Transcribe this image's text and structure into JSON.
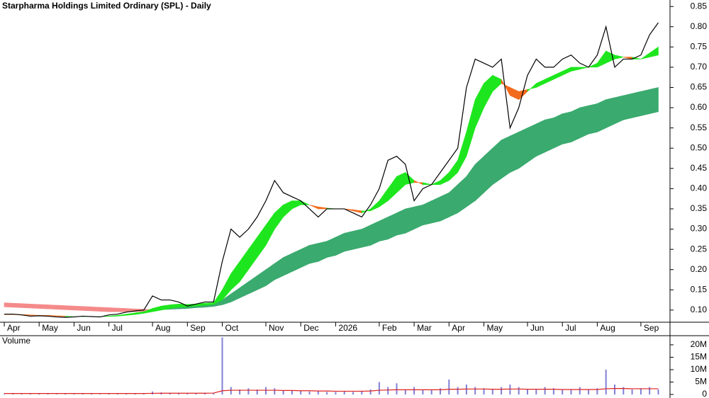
{
  "chart_data": [
    {
      "type": "line",
      "title": "Starpharma Holdings Limited Ordinary (SPL) - Daily",
      "categories": [
        "Apr",
        null,
        null,
        null,
        "May",
        null,
        null,
        null,
        "Jun",
        null,
        null,
        null,
        "Jul",
        null,
        null,
        null,
        null,
        "Aug",
        null,
        null,
        null,
        "Sep",
        null,
        null,
        null,
        "Oct",
        null,
        null,
        null,
        null,
        "Nov",
        null,
        null,
        null,
        "Dec",
        null,
        null,
        null,
        "2026",
        null,
        null,
        null,
        null,
        "Feb",
        null,
        null,
        null,
        "Mar",
        null,
        null,
        null,
        "Apr",
        null,
        null,
        null,
        "May",
        null,
        null,
        null,
        null,
        "Jun",
        null,
        null,
        null,
        "Jul",
        null,
        null,
        null,
        "Aug",
        null,
        null,
        null,
        null,
        "Sep",
        null,
        null
      ],
      "series": [
        {
          "color": "#000000",
          "values": [
            0.09,
            0.09,
            0.088,
            0.085,
            0.086,
            0.085,
            0.083,
            0.082,
            0.083,
            0.085,
            0.084,
            0.083,
            0.088,
            0.09,
            0.095,
            0.098,
            0.1,
            0.135,
            0.125,
            0.125,
            0.12,
            0.11,
            0.115,
            0.12,
            0.12,
            0.22,
            0.3,
            0.28,
            0.3,
            0.33,
            0.37,
            0.42,
            0.39,
            0.38,
            0.37,
            0.35,
            0.33,
            0.35,
            0.35,
            0.35,
            0.34,
            0.33,
            0.36,
            0.4,
            0.47,
            0.48,
            0.46,
            0.37,
            0.4,
            0.41,
            0.44,
            0.47,
            0.5,
            0.65,
            0.72,
            0.71,
            0.7,
            0.72,
            0.55,
            0.6,
            0.68,
            0.72,
            0.7,
            0.7,
            0.72,
            0.73,
            0.71,
            0.7,
            0.73,
            0.8,
            0.7,
            0.72,
            0.72,
            0.73,
            0.78,
            0.81
          ]
        }
      ],
      "bands": [
        {
          "rising_color": "#1ee61e",
          "falling_color": "#f26a1b",
          "fast": [
            0.089,
            0.089,
            0.088,
            0.087,
            0.086,
            0.086,
            0.085,
            0.084,
            0.084,
            0.084,
            0.084,
            0.084,
            0.085,
            0.087,
            0.09,
            0.093,
            0.096,
            0.104,
            0.11,
            0.113,
            0.115,
            0.114,
            0.115,
            0.117,
            0.118,
            0.15,
            0.19,
            0.22,
            0.25,
            0.28,
            0.31,
            0.34,
            0.36,
            0.37,
            0.37,
            0.36,
            0.35,
            0.35,
            0.35,
            0.35,
            0.345,
            0.34,
            0.35,
            0.37,
            0.4,
            0.43,
            0.44,
            0.42,
            0.41,
            0.41,
            0.42,
            0.44,
            0.47,
            0.54,
            0.62,
            0.66,
            0.68,
            0.67,
            0.63,
            0.62,
            0.64,
            0.66,
            0.67,
            0.68,
            0.69,
            0.7,
            0.7,
            0.7,
            0.71,
            0.74,
            0.73,
            0.725,
            0.72,
            0.72,
            0.735,
            0.75
          ],
          "slow": [
            0.09,
            0.09,
            0.089,
            0.088,
            0.087,
            0.087,
            0.086,
            0.085,
            0.084,
            0.084,
            0.084,
            0.084,
            0.084,
            0.085,
            0.087,
            0.089,
            0.092,
            0.096,
            0.1,
            0.104,
            0.107,
            0.108,
            0.11,
            0.112,
            0.114,
            0.125,
            0.15,
            0.17,
            0.2,
            0.23,
            0.26,
            0.3,
            0.33,
            0.35,
            0.36,
            0.36,
            0.355,
            0.352,
            0.35,
            0.35,
            0.348,
            0.345,
            0.345,
            0.355,
            0.37,
            0.39,
            0.41,
            0.415,
            0.415,
            0.41,
            0.41,
            0.42,
            0.44,
            0.48,
            0.55,
            0.6,
            0.64,
            0.66,
            0.65,
            0.64,
            0.645,
            0.65,
            0.66,
            0.67,
            0.68,
            0.69,
            0.695,
            0.7,
            0.7,
            0.71,
            0.72,
            0.725,
            0.725,
            0.72,
            0.725,
            0.73
          ]
        },
        {
          "rising_color": "#3aaa6e",
          "falling_color": "#f58a8a",
          "fast": [
            0.108,
            0.107,
            0.106,
            0.105,
            0.104,
            0.103,
            0.102,
            0.101,
            0.1,
            0.099,
            0.098,
            0.097,
            0.096,
            0.096,
            0.096,
            0.096,
            0.097,
            0.1,
            0.102,
            0.104,
            0.106,
            0.108,
            0.11,
            0.112,
            0.115,
            0.125,
            0.14,
            0.155,
            0.17,
            0.185,
            0.2,
            0.215,
            0.23,
            0.24,
            0.25,
            0.26,
            0.265,
            0.27,
            0.28,
            0.29,
            0.295,
            0.3,
            0.31,
            0.32,
            0.33,
            0.34,
            0.35,
            0.355,
            0.36,
            0.37,
            0.38,
            0.39,
            0.41,
            0.43,
            0.46,
            0.48,
            0.5,
            0.52,
            0.53,
            0.54,
            0.55,
            0.56,
            0.57,
            0.575,
            0.585,
            0.59,
            0.6,
            0.605,
            0.61,
            0.62,
            0.625,
            0.63,
            0.635,
            0.64,
            0.645,
            0.65
          ],
          "slow": [
            0.118,
            0.117,
            0.116,
            0.115,
            0.114,
            0.113,
            0.112,
            0.111,
            0.11,
            0.109,
            0.108,
            0.107,
            0.106,
            0.105,
            0.104,
            0.103,
            0.102,
            0.101,
            0.101,
            0.102,
            0.103,
            0.104,
            0.106,
            0.107,
            0.109,
            0.113,
            0.12,
            0.13,
            0.14,
            0.15,
            0.16,
            0.175,
            0.185,
            0.195,
            0.205,
            0.215,
            0.22,
            0.23,
            0.235,
            0.245,
            0.25,
            0.255,
            0.26,
            0.27,
            0.275,
            0.285,
            0.29,
            0.3,
            0.31,
            0.315,
            0.32,
            0.33,
            0.34,
            0.355,
            0.37,
            0.39,
            0.41,
            0.425,
            0.44,
            0.45,
            0.465,
            0.48,
            0.49,
            0.5,
            0.51,
            0.515,
            0.525,
            0.535,
            0.54,
            0.55,
            0.56,
            0.57,
            0.575,
            0.58,
            0.585,
            0.59
          ]
        }
      ],
      "ylim": [
        0.07,
        0.866
      ],
      "yticks": [
        {
          "value": 0.1,
          "label": "0.10"
        },
        0.15,
        {
          "value": 0.2,
          "label": "0.20"
        },
        0.25,
        {
          "value": 0.3,
          "label": "0.30"
        },
        0.35,
        {
          "value": 0.4,
          "label": "0.40"
        },
        0.45,
        {
          "value": 0.5,
          "label": "0.50"
        },
        0.55,
        {
          "value": 0.6,
          "label": "0.60"
        },
        0.65,
        {
          "value": 0.7,
          "label": "0.70"
        },
        0.75,
        {
          "value": 0.8,
          "label": "0.80"
        },
        0.85
      ]
    },
    {
      "type": "bar",
      "title": "Volume",
      "title_color": "#7a7acc",
      "series": [
        {
          "color": "#8080d8",
          "values": [
            300000,
            400000,
            250000,
            300000,
            350000,
            300000,
            200000,
            300000,
            250000,
            300000,
            350000,
            200000,
            300000,
            400000,
            500000,
            350000,
            400000,
            1200000,
            800000,
            600000,
            500000,
            400000,
            500000,
            700000,
            600000,
            23000000,
            3000000,
            2000000,
            2500000,
            2000000,
            3000000,
            2500000,
            1500000,
            1500000,
            1500000,
            1200000,
            1500000,
            1000000,
            1000000,
            1200000,
            1000000,
            1500000,
            2000000,
            5000000,
            3000000,
            4500000,
            2000000,
            3000000,
            2000000,
            2000000,
            2500000,
            6000000,
            3000000,
            4000000,
            3000000,
            2500000,
            2000000,
            3000000,
            4000000,
            3000000,
            2000000,
            2000000,
            3000000,
            2500000,
            2000000,
            2000000,
            3000000,
            2000000,
            2500000,
            10000000,
            4000000,
            3000000,
            2000000,
            2500000,
            3000000,
            2000000
          ]
        },
        {
          "color": "#e02020",
          "values": [
            400000,
            400000,
            400000,
            400000,
            400000,
            400000,
            400000,
            400000,
            400000,
            400000,
            400000,
            400000,
            400000,
            400000,
            400000,
            400000,
            400000,
            450000,
            500000,
            500000,
            500000,
            500000,
            500000,
            500000,
            550000,
            1500000,
            1700000,
            1700000,
            1700000,
            1700000,
            1700000,
            1700000,
            1600000,
            1600000,
            1500000,
            1500000,
            1400000,
            1400000,
            1300000,
            1300000,
            1300000,
            1300000,
            1400000,
            1700000,
            1800000,
            1900000,
            1900000,
            1900000,
            1900000,
            1900000,
            1900000,
            2100000,
            2100000,
            2200000,
            2200000,
            2200000,
            2100000,
            2100000,
            2200000,
            2200000,
            2100000,
            2100000,
            2100000,
            2100000,
            2000000,
            2000000,
            2000000,
            2000000,
            2000000,
            2300000,
            2400000,
            2400000,
            2300000,
            2300000,
            2300000,
            2300000
          ]
        }
      ],
      "ylim": [
        0,
        23400000
      ],
      "yticks": [
        0,
        {
          "value": 5000000,
          "label": "5M"
        },
        {
          "value": 10000000,
          "label": "10M"
        },
        {
          "value": 15000000,
          "label": "15M"
        },
        {
          "value": 20000000,
          "label": "20M"
        }
      ]
    }
  ]
}
